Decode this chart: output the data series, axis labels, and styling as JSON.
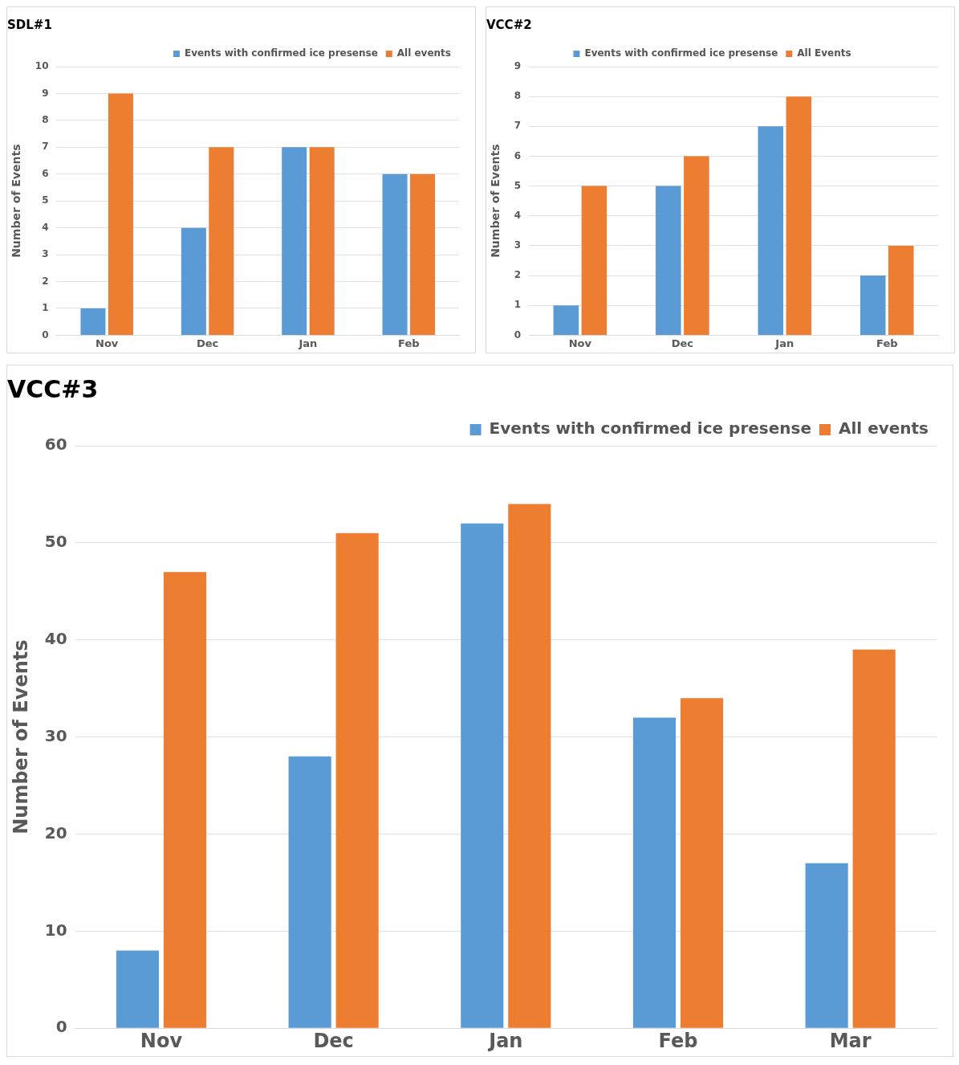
{
  "chart_data": [
    {
      "type": "bar",
      "title": "SDL#1",
      "ylabel": "Number of Events",
      "categories": [
        "Nov",
        "Dec",
        "Jan",
        "Feb"
      ],
      "series": [
        {
          "name": "Events with confirmed ice presense",
          "color": "#5b9bd5",
          "values": [
            1,
            4,
            7,
            6
          ]
        },
        {
          "name": "All events",
          "color": "#ed7d31",
          "values": [
            9,
            7,
            7,
            6
          ]
        }
      ],
      "ylim": [
        0,
        10
      ],
      "yticks": [
        0,
        1,
        2,
        3,
        4,
        5,
        6,
        7,
        8,
        9,
        10
      ],
      "grid": "y",
      "legend": "top right"
    },
    {
      "type": "bar",
      "title": "VCC#2",
      "ylabel": "Number of Events",
      "categories": [
        "Nov",
        "Dec",
        "Jan",
        "Feb"
      ],
      "series": [
        {
          "name": "Events with confirmed ice presense",
          "color": "#5b9bd5",
          "values": [
            1,
            5,
            7,
            2
          ]
        },
        {
          "name": "All Events",
          "color": "#ed7d31",
          "values": [
            5,
            6,
            8,
            3
          ]
        }
      ],
      "ylim": [
        0,
        9
      ],
      "yticks": [
        0,
        1,
        2,
        3,
        4,
        5,
        6,
        7,
        8,
        9
      ],
      "grid": "y",
      "legend": "top"
    },
    {
      "type": "bar",
      "title": "VCC#3",
      "ylabel": "Number of Events",
      "categories": [
        "Nov",
        "Dec",
        "Jan",
        "Feb",
        "Mar"
      ],
      "series": [
        {
          "name": "Events with confirmed ice presense",
          "color": "#5b9bd5",
          "values": [
            8,
            28,
            52,
            32,
            17
          ]
        },
        {
          "name": "All events",
          "color": "#ed7d31",
          "values": [
            47,
            51,
            54,
            34,
            39
          ]
        }
      ],
      "ylim": [
        0,
        60
      ],
      "yticks": [
        0,
        10,
        20,
        30,
        40,
        50,
        60
      ],
      "grid": "y",
      "legend": "top right"
    }
  ]
}
